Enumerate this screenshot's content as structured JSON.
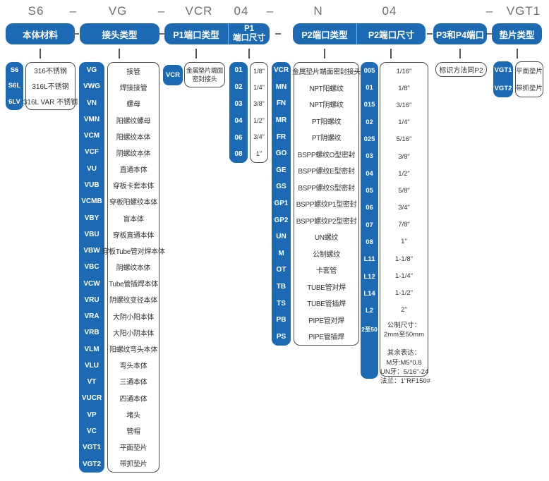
{
  "colors": {
    "accent_blue": "#1b6ab3",
    "box_border": "#4d4d4d",
    "top_text": "#6d6e71",
    "desc_text": "#333333"
  },
  "part_number": [
    "S6",
    "–",
    "VG",
    "–",
    "VCR",
    "04",
    "–",
    "N",
    "04",
    "–",
    "VGT1"
  ],
  "headers": {
    "material": "本体材料",
    "joint_type": "接头类型",
    "p1_type": "P1端口类型",
    "p1_size_line1": "P1",
    "p1_size_line2": "端口尺寸",
    "p2_type": "P2端口类型",
    "p2_size": "P2端口尺寸",
    "p3_p4": "P3和P4端口",
    "gasket": "垫片类型"
  },
  "material": {
    "items": [
      {
        "code": "S6",
        "desc": "316不锈钢"
      },
      {
        "code": "S6L",
        "desc": "316L不锈钢"
      },
      {
        "code": "6LV",
        "desc": "316L VAR 不锈钢"
      }
    ]
  },
  "joint_type": {
    "items": [
      {
        "code": "VG",
        "desc": "接管"
      },
      {
        "code": "VWG",
        "desc": "焊接接管"
      },
      {
        "code": "VN",
        "desc": "螺母"
      },
      {
        "code": "VMN",
        "desc": "阳螺纹螺母"
      },
      {
        "code": "VCM",
        "desc": "阳螺纹本体"
      },
      {
        "code": "VCF",
        "desc": "阴螺纹本体"
      },
      {
        "code": "VU",
        "desc": "直通本体"
      },
      {
        "code": "VUB",
        "desc": "穿板卡套本体"
      },
      {
        "code": "VCMB",
        "desc": "穿板阳螺纹本体"
      },
      {
        "code": "VBY",
        "desc": "盲本体"
      },
      {
        "code": "VBU",
        "desc": "穿板直通本体"
      },
      {
        "code": "VBW",
        "desc": "穿板Tube管对焊本体"
      },
      {
        "code": "VBC",
        "desc": "阴螺纹本体"
      },
      {
        "code": "VCW",
        "desc": "Tube管插焊本体"
      },
      {
        "code": "VRU",
        "desc": "阴螺纹变径本体"
      },
      {
        "code": "VRA",
        "desc": "大阴小阳本体"
      },
      {
        "code": "VRB",
        "desc": "大阳小阴本体"
      },
      {
        "code": "VLM",
        "desc": "阳螺纹弯头本体"
      },
      {
        "code": "VLU",
        "desc": "弯头本体"
      },
      {
        "code": "VT",
        "desc": "三通本体"
      },
      {
        "code": "VUCR",
        "desc": "四通本体"
      },
      {
        "code": "VP",
        "desc": "堵头"
      },
      {
        "code": "VC",
        "desc": "管帽"
      },
      {
        "code": "VGT1",
        "desc": "平面垫片"
      },
      {
        "code": "VGT2",
        "desc": "带抓垫片"
      }
    ]
  },
  "p1_type": {
    "code": "VCR",
    "desc_line1": "金属垫片端面",
    "desc_line2": "密封接头"
  },
  "p1_size": {
    "items": [
      {
        "code": "01",
        "desc": "1/8\""
      },
      {
        "code": "02",
        "desc": "1/4\""
      },
      {
        "code": "03",
        "desc": "3/8\""
      },
      {
        "code": "04",
        "desc": "1/2\""
      },
      {
        "code": "06",
        "desc": "3/4\""
      },
      {
        "code": "08",
        "desc": "1\""
      }
    ]
  },
  "p2_type": {
    "items": [
      {
        "code": "VCR",
        "desc": "金属垫片端面密封接头"
      },
      {
        "code": "MN",
        "desc": "NPT阳螺纹"
      },
      {
        "code": "FN",
        "desc": "NPT阴螺纹"
      },
      {
        "code": "MR",
        "desc": "PT阳螺纹"
      },
      {
        "code": "FR",
        "desc": "PT阴螺纹"
      },
      {
        "code": "GO",
        "desc": "BSPP螺纹O型密封"
      },
      {
        "code": "GE",
        "desc": "BSPP螺纹E型密封"
      },
      {
        "code": "GS",
        "desc": "BSPP螺纹S型密封"
      },
      {
        "code": "GP1",
        "desc": "BSPP螺纹P1型密封"
      },
      {
        "code": "GP2",
        "desc": "BSPP螺纹P2型密封"
      },
      {
        "code": "UN",
        "desc": "UN螺纹"
      },
      {
        "code": "M",
        "desc": "公制螺纹"
      },
      {
        "code": "OT",
        "desc": "卡套管"
      },
      {
        "code": "TB",
        "desc": "TUBE管对焊"
      },
      {
        "code": "TS",
        "desc": "TUBE管插焊"
      },
      {
        "code": "PB",
        "desc": "PIPE管对焊"
      },
      {
        "code": "PS",
        "desc": "PIPE管插焊"
      }
    ]
  },
  "p2_size": {
    "items": [
      {
        "code": "005",
        "desc": "1/16\""
      },
      {
        "code": "01",
        "desc": "1/8\""
      },
      {
        "code": "015",
        "desc": "3/16\""
      },
      {
        "code": "02",
        "desc": "1/4\""
      },
      {
        "code": "025",
        "desc": "5/16\""
      },
      {
        "code": "03",
        "desc": "3/8\""
      },
      {
        "code": "04",
        "desc": "1/2\""
      },
      {
        "code": "05",
        "desc": "5/8\""
      },
      {
        "code": "06",
        "desc": "3/4\""
      },
      {
        "code": "07",
        "desc": "7/8\""
      },
      {
        "code": "08",
        "desc": "1\""
      },
      {
        "code": "L11",
        "desc": "1-1/8\""
      },
      {
        "code": "L12",
        "desc": "1-1/4\""
      },
      {
        "code": "L14",
        "desc": "1-1/2\""
      },
      {
        "code": "L2",
        "desc": "2\""
      }
    ],
    "metric": {
      "code": "2至50",
      "lines": [
        "公制尺寸：",
        "2mm至50mm",
        "",
        "其余表达：",
        "M牙:M5*0.8",
        "UN牙：5/16\"-24",
        "法兰：1\"RF150#"
      ]
    }
  },
  "p3_p4": {
    "note": "标识方法同P2"
  },
  "gasket": {
    "items": [
      {
        "code": "VGT1",
        "desc": "平面垫片"
      },
      {
        "code": "VGT2",
        "desc": "带抓垫片"
      }
    ]
  }
}
